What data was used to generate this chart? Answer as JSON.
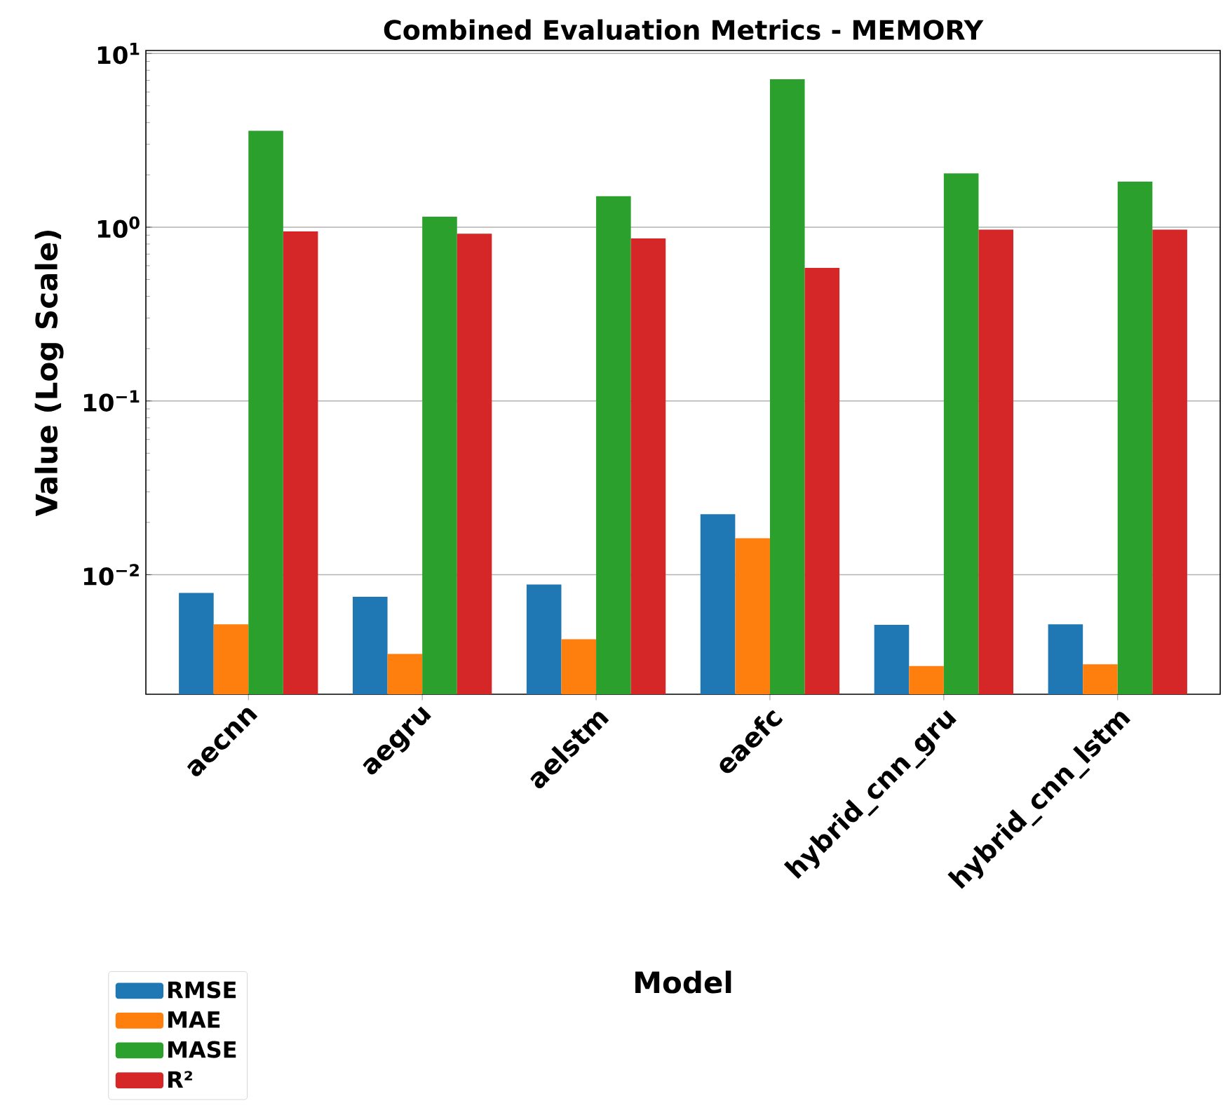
{
  "chart_data": {
    "type": "bar",
    "title": "Combined Evaluation Metrics - MEMORY",
    "xlabel": "Model",
    "ylabel": "Value (Log Scale)",
    "categories": [
      "aecnn",
      "aegru",
      "aelstm",
      "eaefc",
      "hybrid_cnn_gru",
      "hybrid_cnn_lstm"
    ],
    "series": [
      {
        "name": "RMSE",
        "color": "#1f77b4",
        "values": [
          0.00785,
          0.00747,
          0.00878,
          0.0223,
          0.00515,
          0.00518
        ]
      },
      {
        "name": "MAE",
        "color": "#ff7f0e",
        "values": [
          0.00518,
          0.0035,
          0.00425,
          0.0162,
          0.00298,
          0.00305
        ]
      },
      {
        "name": "MASE",
        "color": "#2ca02c",
        "values": [
          3.59,
          1.15,
          1.51,
          7.11,
          2.04,
          1.83
        ]
      },
      {
        "name": "R²",
        "color": "#d62728",
        "values": [
          0.946,
          0.917,
          0.861,
          0.583,
          0.969,
          0.969
        ]
      }
    ],
    "log": "y",
    "ylim": [
      0.00205,
      10.4
    ],
    "yticks": [
      {
        "value": 0.01,
        "label": "10$^{−2}$"
      },
      {
        "value": 0.1,
        "label": "10$^{−1}$"
      },
      {
        "value": 1,
        "label": "10$^{0}$"
      },
      {
        "value": 10,
        "label": "10$^{1}$"
      }
    ],
    "grid": "y",
    "legend": "bottom left"
  }
}
